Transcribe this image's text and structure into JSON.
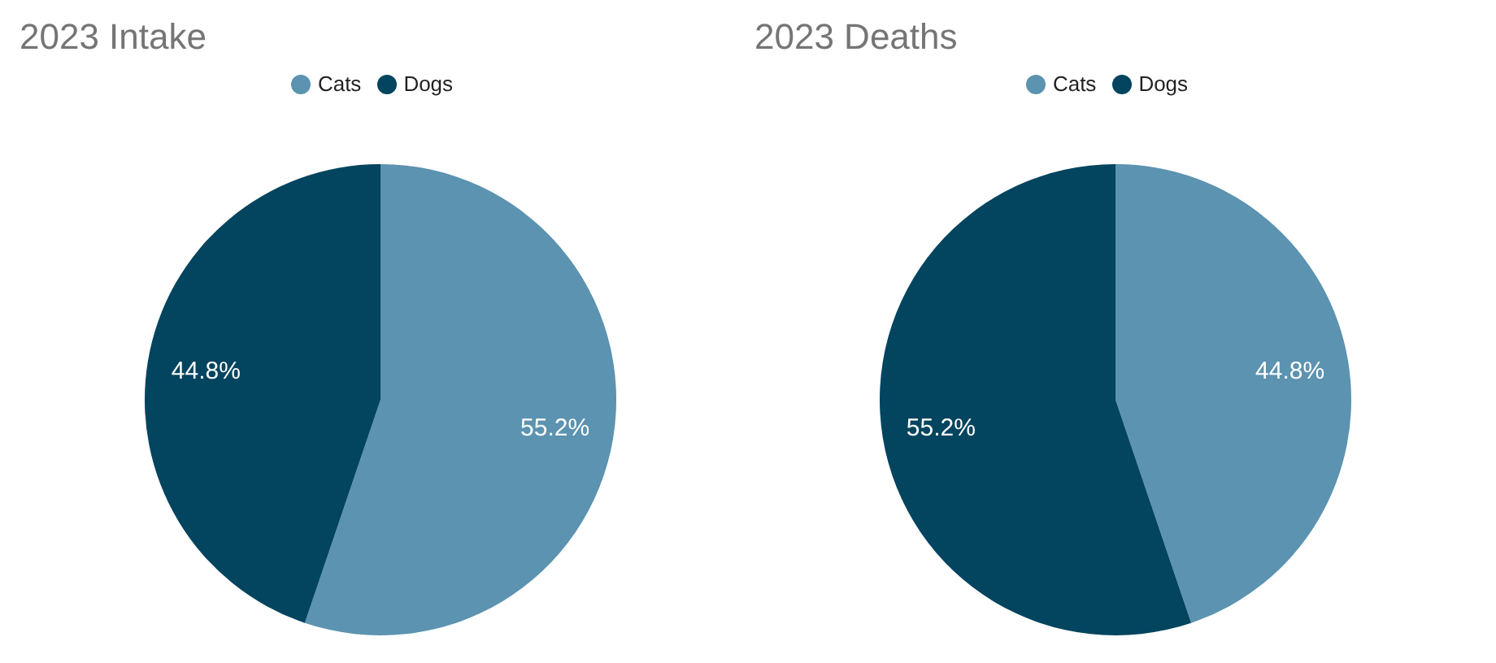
{
  "chart_data": [
    {
      "type": "pie",
      "title": "2023 Intake",
      "categories": [
        "Cats",
        "Dogs"
      ],
      "values": [
        55.2,
        44.8
      ],
      "value_labels": [
        "55.2%",
        "44.8%"
      ],
      "colors": [
        "#5b93b0",
        "#03445f"
      ],
      "legend": "top"
    },
    {
      "type": "pie",
      "title": "2023 Deaths",
      "categories": [
        "Cats",
        "Dogs"
      ],
      "values": [
        44.8,
        55.2
      ],
      "value_labels": [
        "44.8%",
        "55.2%"
      ],
      "colors": [
        "#5b93b0",
        "#03445f"
      ],
      "legend": "top"
    }
  ]
}
